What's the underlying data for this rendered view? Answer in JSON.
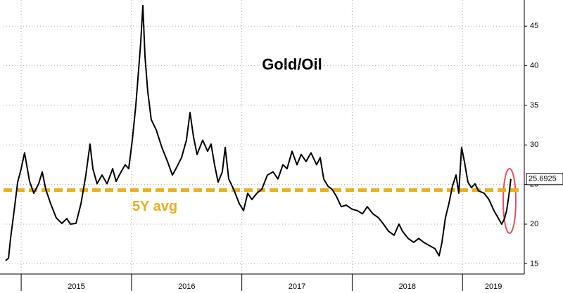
{
  "chart_data": {
    "type": "line",
    "title": "Gold/Oil",
    "x": [
      2014.859,
      2014.885,
      2014.904,
      2014.936,
      2014.968,
      2015.0,
      2015.031,
      2015.05,
      2015.076,
      2015.114,
      2015.159,
      2015.191,
      2015.223,
      2015.267,
      2015.318,
      2015.369,
      2015.414,
      2015.446,
      2015.497,
      2015.542,
      2015.586,
      2015.624,
      2015.65,
      2015.688,
      2015.733,
      2015.778,
      2015.829,
      2015.86,
      2015.905,
      2015.943,
      2015.975,
      2016.007,
      2016.039,
      2016.064,
      2016.084,
      2016.103,
      2016.122,
      2016.147,
      2016.179,
      2016.224,
      2016.275,
      2016.326,
      2016.371,
      2016.403,
      2016.454,
      2016.498,
      2016.53,
      2016.562,
      2016.594,
      2016.645,
      2016.69,
      2016.721,
      2016.753,
      2016.785,
      2016.823,
      2016.849,
      2016.881,
      2016.926,
      2016.977,
      2017.015,
      2017.053,
      2017.091,
      2017.136,
      2017.181,
      2017.232,
      2017.283,
      2017.327,
      2017.372,
      2017.41,
      2017.455,
      2017.5,
      2017.538,
      2017.582,
      2017.627,
      2017.678,
      2017.71,
      2017.742,
      2017.78,
      2017.818,
      2017.857,
      2017.901,
      2017.946,
      2017.997,
      2018.048,
      2018.093,
      2018.137,
      2018.188,
      2018.239,
      2018.284,
      2018.329,
      2018.38,
      2018.424,
      2018.456,
      2018.507,
      2018.558,
      2018.603,
      2018.648,
      2018.699,
      2018.75,
      2018.788,
      2018.814,
      2018.845,
      2018.877,
      2018.909,
      2018.941,
      2018.966,
      2018.992,
      2019.017,
      2019.049,
      2019.081,
      2019.113,
      2019.145,
      2019.196,
      2019.24,
      2019.285,
      2019.323,
      2019.355,
      2019.381,
      2019.4,
      2019.419,
      2019.438
    ],
    "series": [
      {
        "color": "#000000",
        "values": [
          15.4,
          15.7,
          18.2,
          21.7,
          25.3,
          27.0,
          29.0,
          27.5,
          25.4,
          23.9,
          25.1,
          26.6,
          24.4,
          22.6,
          20.8,
          20.1,
          20.7,
          20.0,
          20.1,
          22.6,
          26.2,
          30.1,
          27.0,
          25.1,
          26.2,
          25.1,
          27.0,
          25.4,
          26.6,
          27.5,
          27.0,
          30.6,
          35.0,
          39.4,
          43.0,
          47.6,
          41.2,
          36.8,
          33.2,
          31.9,
          29.7,
          27.9,
          26.2,
          27.0,
          28.4,
          30.6,
          34.1,
          31.0,
          28.8,
          30.6,
          29.2,
          30.1,
          27.5,
          25.3,
          26.6,
          29.7,
          25.7,
          24.4,
          22.6,
          21.7,
          23.9,
          23.1,
          23.9,
          24.4,
          26.2,
          26.6,
          25.7,
          27.5,
          27.0,
          29.2,
          27.5,
          28.8,
          27.9,
          29.0,
          27.5,
          28.4,
          25.7,
          24.8,
          24.4,
          23.5,
          22.2,
          22.4,
          21.9,
          21.7,
          21.3,
          22.2,
          21.3,
          20.8,
          20.0,
          19.1,
          18.6,
          20.0,
          19.1,
          18.2,
          17.7,
          18.2,
          17.7,
          17.3,
          16.9,
          16.0,
          17.7,
          20.8,
          22.6,
          24.8,
          26.2,
          23.9,
          29.7,
          27.9,
          25.3,
          24.6,
          25.1,
          24.2,
          23.9,
          23.1,
          21.7,
          20.8,
          20.0,
          20.7,
          21.7,
          23.5,
          25.6925
        ]
      }
    ],
    "reference_line": {
      "value": 24.3,
      "label": "5Y avg",
      "color": "#e8b020"
    },
    "xlim": [
      2014.84,
      2019.56
    ],
    "xticks": [
      2015,
      2016,
      2017,
      2018,
      2019
    ],
    "ylim": [
      13.7,
      48.3
    ],
    "yticks": [
      15,
      20,
      25,
      30,
      35,
      40,
      45
    ],
    "grid": true
  }
}
